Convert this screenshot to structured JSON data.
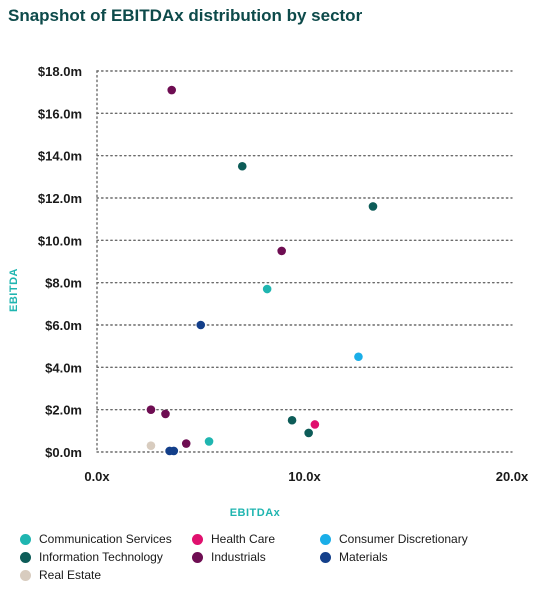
{
  "title": "Snapshot of EBITDAx distribution by sector",
  "chart_data": {
    "type": "scatter",
    "xlabel": "EBITDAx",
    "ylabel": "EBITDA",
    "xlim": [
      0,
      20
    ],
    "ylim": [
      0,
      18
    ],
    "x_ticks": [
      {
        "value": 0,
        "label": "0.0x"
      },
      {
        "value": 10,
        "label": "10.0x"
      },
      {
        "value": 20,
        "label": "20.0x"
      }
    ],
    "y_ticks": [
      {
        "value": 0,
        "label": "$0.0m"
      },
      {
        "value": 2,
        "label": "$2.0m"
      },
      {
        "value": 4,
        "label": "$4.0m"
      },
      {
        "value": 6,
        "label": "$6.0m"
      },
      {
        "value": 8,
        "label": "$8.0m"
      },
      {
        "value": 10,
        "label": "$10.0m"
      },
      {
        "value": 12,
        "label": "$12.0m"
      },
      {
        "value": 14,
        "label": "$14.0m"
      },
      {
        "value": 16,
        "label": "$16.0m"
      },
      {
        "value": 18,
        "label": "$18.0m"
      }
    ],
    "grid": "horizontal dotted",
    "legend_position": "bottom",
    "series": [
      {
        "name": "Communication Services",
        "color": "#1fb5b0",
        "points": [
          [
            8.2,
            7.7
          ],
          [
            5.4,
            0.5
          ]
        ]
      },
      {
        "name": "Health Care",
        "color": "#e0106e",
        "points": [
          [
            10.5,
            1.3
          ]
        ]
      },
      {
        "name": "Consumer Discretionary",
        "color": "#1aaee8",
        "points": [
          [
            12.6,
            4.5
          ]
        ]
      },
      {
        "name": "Information Technology",
        "color": "#0d5c58",
        "points": [
          [
            7.0,
            13.5
          ],
          [
            13.3,
            11.6
          ],
          [
            9.4,
            1.5
          ],
          [
            10.2,
            0.9
          ]
        ]
      },
      {
        "name": "Industrials",
        "color": "#6e0d52",
        "points": [
          [
            3.6,
            17.1
          ],
          [
            8.9,
            9.5
          ],
          [
            2.6,
            2.0
          ],
          [
            3.3,
            1.8
          ],
          [
            4.3,
            0.4
          ]
        ]
      },
      {
        "name": "Materials",
        "color": "#133f8a",
        "points": [
          [
            5.0,
            6.0
          ],
          [
            3.5,
            0.05
          ],
          [
            3.7,
            0.05
          ]
        ]
      },
      {
        "name": "Real Estate",
        "color": "#d8ccbf",
        "points": [
          [
            2.6,
            0.3
          ]
        ]
      }
    ]
  }
}
